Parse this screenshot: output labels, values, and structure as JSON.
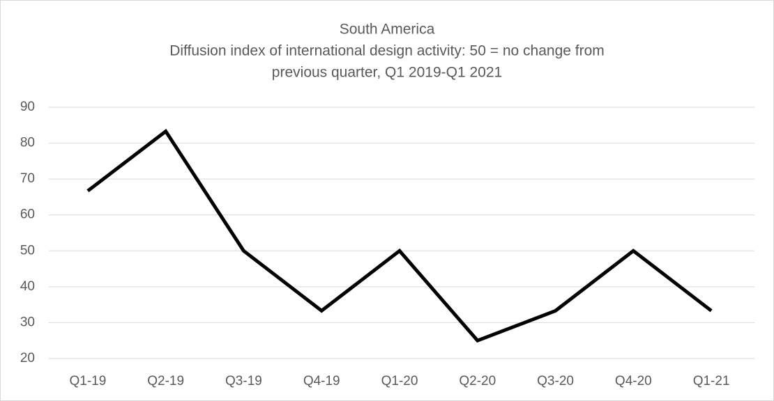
{
  "chart_data": {
    "type": "line",
    "title": "South America",
    "subtitle": [
      "Diffusion index of international design activity: 50 = no change from",
      "previous quarter, Q1 2019-Q1 2021"
    ],
    "categories": [
      "Q1-19",
      "Q2-19",
      "Q3-19",
      "Q4-19",
      "Q1-20",
      "Q2-20",
      "Q3-20",
      "Q4-20",
      "Q1-21"
    ],
    "values": [
      66.7,
      83.3,
      50,
      33.3,
      50,
      25,
      33.3,
      50,
      33.3
    ],
    "color": "#000000",
    "ylim": [
      20,
      90
    ],
    "yticks": [
      20,
      30,
      40,
      50,
      60,
      70,
      80,
      90
    ],
    "grid": true
  }
}
